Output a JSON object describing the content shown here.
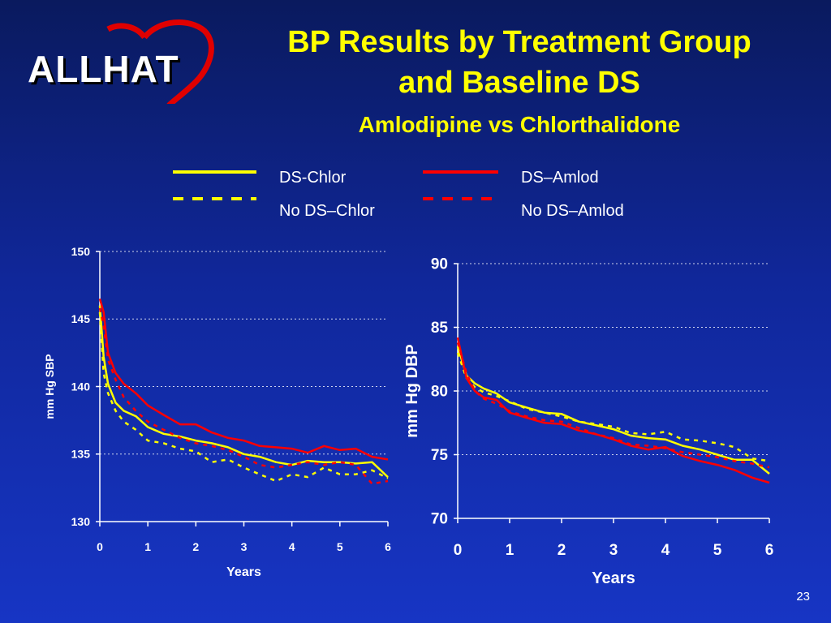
{
  "logo": {
    "text": "ALLHAT"
  },
  "title": {
    "line1": "BP Results by Treatment Group",
    "line2": "and Baseline DS",
    "subtitle": "Amlodipine vs Chlorthalidone"
  },
  "legend": [
    {
      "name": "DS-Chlor",
      "color": "#ffff00",
      "style": "solid"
    },
    {
      "name": "No DS–Chlor",
      "color": "#ffff00",
      "style": "dashed"
    },
    {
      "name": "DS–Amlod",
      "color": "#ff0000",
      "style": "solid"
    },
    {
      "name": "No DS–Amlod",
      "color": "#ff0000",
      "style": "dashed"
    }
  ],
  "slide_number": "23",
  "chart_data": [
    {
      "type": "line",
      "xlabel": "Years",
      "ylabel": "mm Hg SBP",
      "xlim": [
        0,
        6
      ],
      "ylim": [
        130,
        150
      ],
      "xticks": [
        "0",
        "1",
        "2",
        "3",
        "4",
        "5",
        "6"
      ],
      "yticks": [
        "130",
        "135",
        "140",
        "145",
        "150"
      ],
      "grid": true,
      "series": [
        {
          "name": "DS-Chlor",
          "x": [
            0,
            0.08,
            0.17,
            0.33,
            0.5,
            0.75,
            1,
            1.33,
            1.67,
            2,
            2.33,
            2.67,
            3,
            3.33,
            3.67,
            4,
            4.33,
            4.67,
            5,
            5.33,
            5.67,
            6
          ],
          "y": [
            146,
            142.2,
            140.2,
            138.8,
            138.2,
            137.8,
            137,
            136.5,
            136.3,
            136,
            135.8,
            135.5,
            135,
            134.8,
            134.4,
            134.2,
            134.5,
            134.4,
            134.4,
            134.3,
            134.4,
            133.3
          ]
        },
        {
          "name": "No DS–Chlor",
          "x": [
            0,
            0.08,
            0.17,
            0.33,
            0.5,
            0.75,
            1,
            1.33,
            1.67,
            2,
            2.33,
            2.67,
            3,
            3.33,
            3.67,
            4,
            4.33,
            4.67,
            5,
            5.33,
            5.67,
            6
          ],
          "y": [
            145.5,
            141,
            139.5,
            138.2,
            137.4,
            136.8,
            136,
            135.8,
            135.4,
            135.2,
            134.4,
            134.6,
            134,
            133.5,
            133,
            133.5,
            133.3,
            134,
            133.5,
            133.5,
            133.8,
            133.2
          ]
        },
        {
          "name": "DS–Amlod",
          "x": [
            0,
            0.08,
            0.17,
            0.33,
            0.5,
            0.75,
            1,
            1.33,
            1.67,
            2,
            2.33,
            2.67,
            3,
            3.33,
            3.67,
            4,
            4.33,
            4.67,
            5,
            5.33,
            5.67,
            6
          ],
          "y": [
            146.5,
            145.5,
            142.5,
            141,
            140.2,
            139.5,
            138.6,
            137.9,
            137.2,
            137.2,
            136.6,
            136.2,
            136,
            135.6,
            135.5,
            135.4,
            135.1,
            135.6,
            135.3,
            135.4,
            134.8,
            134.6
          ]
        },
        {
          "name": "No DS–Amlod",
          "x": [
            0,
            0.08,
            0.17,
            0.33,
            0.5,
            0.75,
            1,
            1.33,
            1.67,
            2,
            2.33,
            2.67,
            3,
            3.33,
            3.67,
            4,
            4.33,
            4.67,
            5,
            5.33,
            5.67,
            6
          ],
          "y": [
            145.8,
            144.5,
            142,
            140.5,
            139.2,
            138.2,
            137.4,
            136.8,
            136.2,
            135.8,
            135.6,
            135.3,
            134.8,
            134.2,
            134,
            134.2,
            134.4,
            134.2,
            134.4,
            134.2,
            132.8,
            133
          ]
        }
      ]
    },
    {
      "type": "line",
      "xlabel": "Years",
      "ylabel": "mm Hg DBP",
      "xlim": [
        0,
        6
      ],
      "ylim": [
        70,
        90
      ],
      "xticks": [
        "0",
        "1",
        "2",
        "3",
        "4",
        "5",
        "6"
      ],
      "yticks": [
        "70",
        "75",
        "80",
        "85",
        "90"
      ],
      "grid": true,
      "series": [
        {
          "name": "DS-Chlor",
          "x": [
            0,
            0.17,
            0.33,
            0.5,
            0.75,
            1,
            1.33,
            1.67,
            2,
            2.33,
            2.67,
            3,
            3.33,
            3.67,
            4,
            4.33,
            4.67,
            5,
            5.33,
            5.67,
            6
          ],
          "y": [
            83.5,
            81.2,
            80.6,
            80.2,
            79.8,
            79.1,
            78.7,
            78.3,
            78.2,
            77.6,
            77.3,
            77.0,
            76.5,
            76.3,
            76.2,
            75.7,
            75.4,
            75.0,
            74.6,
            74.6,
            73.5
          ]
        },
        {
          "name": "No DS–Chlor",
          "x": [
            0,
            0.17,
            0.33,
            0.5,
            0.75,
            1,
            1.33,
            1.67,
            2,
            2.33,
            2.67,
            3,
            3.33,
            3.67,
            4,
            4.33,
            4.67,
            5,
            5.33,
            5.67,
            6
          ],
          "y": [
            83.0,
            81.0,
            80.3,
            79.9,
            79.6,
            79.2,
            78.6,
            78.3,
            78.0,
            77.6,
            77.4,
            77.2,
            76.7,
            76.6,
            76.8,
            76.2,
            76.1,
            75.9,
            75.6,
            74.7,
            74.5
          ]
        },
        {
          "name": "DS–Amlod",
          "x": [
            0,
            0.17,
            0.33,
            0.5,
            0.75,
            1,
            1.33,
            1.67,
            2,
            2.33,
            2.67,
            3,
            3.33,
            3.67,
            4,
            4.33,
            4.67,
            5,
            5.33,
            5.67,
            6
          ],
          "y": [
            84.2,
            81.0,
            80.0,
            79.5,
            79.3,
            78.3,
            77.9,
            77.5,
            77.4,
            76.9,
            76.6,
            76.2,
            75.7,
            75.4,
            75.6,
            74.9,
            74.5,
            74.2,
            73.8,
            73.2,
            72.8
          ]
        },
        {
          "name": "No DS–Amlod",
          "x": [
            0,
            0.17,
            0.33,
            0.5,
            0.75,
            1,
            1.33,
            1.67,
            2,
            2.33,
            2.67,
            3,
            3.33,
            3.67,
            4,
            4.33,
            4.67,
            5,
            5.33,
            5.67,
            6
          ],
          "y": [
            83.8,
            81.4,
            80.0,
            79.4,
            79.0,
            78.4,
            78.0,
            77.7,
            77.6,
            77.1,
            76.6,
            76.3,
            75.8,
            75.7,
            75.5,
            75.2,
            75.0,
            74.8,
            74.5,
            74.3,
            74.0
          ]
        }
      ]
    }
  ]
}
